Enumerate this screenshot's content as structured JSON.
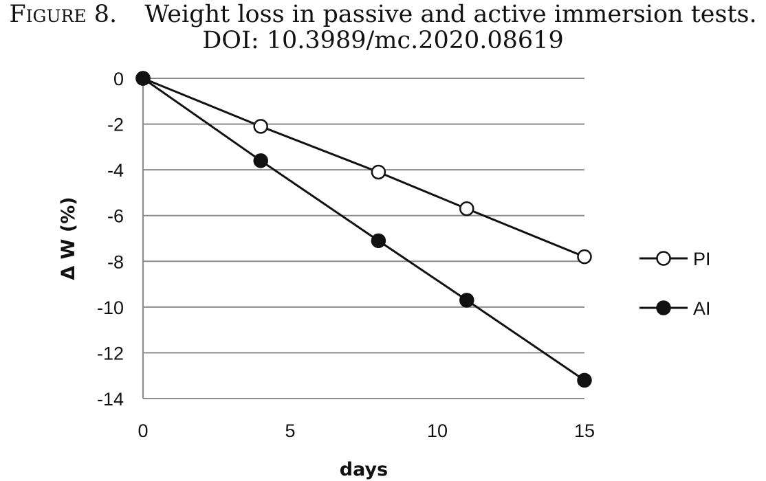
{
  "caption": {
    "label": "Figure 8.",
    "text": "Weight loss in passive and active immersion tests.",
    "doi": "DOI: 10.3989/mc.2020.08619"
  },
  "chart_data": {
    "type": "line",
    "xlabel": "days",
    "ylabel": "Δ W (%)",
    "xlim": [
      0,
      15
    ],
    "ylim": [
      -14,
      0
    ],
    "xticks": [
      0,
      5,
      10,
      15
    ],
    "yticks": [
      0,
      -2,
      -4,
      -6,
      -8,
      -10,
      -12,
      -14
    ],
    "grid": "horizontal",
    "legend": "right",
    "series": [
      {
        "name": "PI",
        "marker": "open-circle",
        "x": [
          0,
          4,
          8,
          11,
          15
        ],
        "y": [
          0,
          -2.1,
          -4.1,
          -5.7,
          -7.8
        ]
      },
      {
        "name": "AI",
        "marker": "filled-circle",
        "x": [
          0,
          4,
          8,
          11,
          15
        ],
        "y": [
          0,
          -3.6,
          -7.1,
          -9.7,
          -13.2
        ]
      }
    ]
  }
}
